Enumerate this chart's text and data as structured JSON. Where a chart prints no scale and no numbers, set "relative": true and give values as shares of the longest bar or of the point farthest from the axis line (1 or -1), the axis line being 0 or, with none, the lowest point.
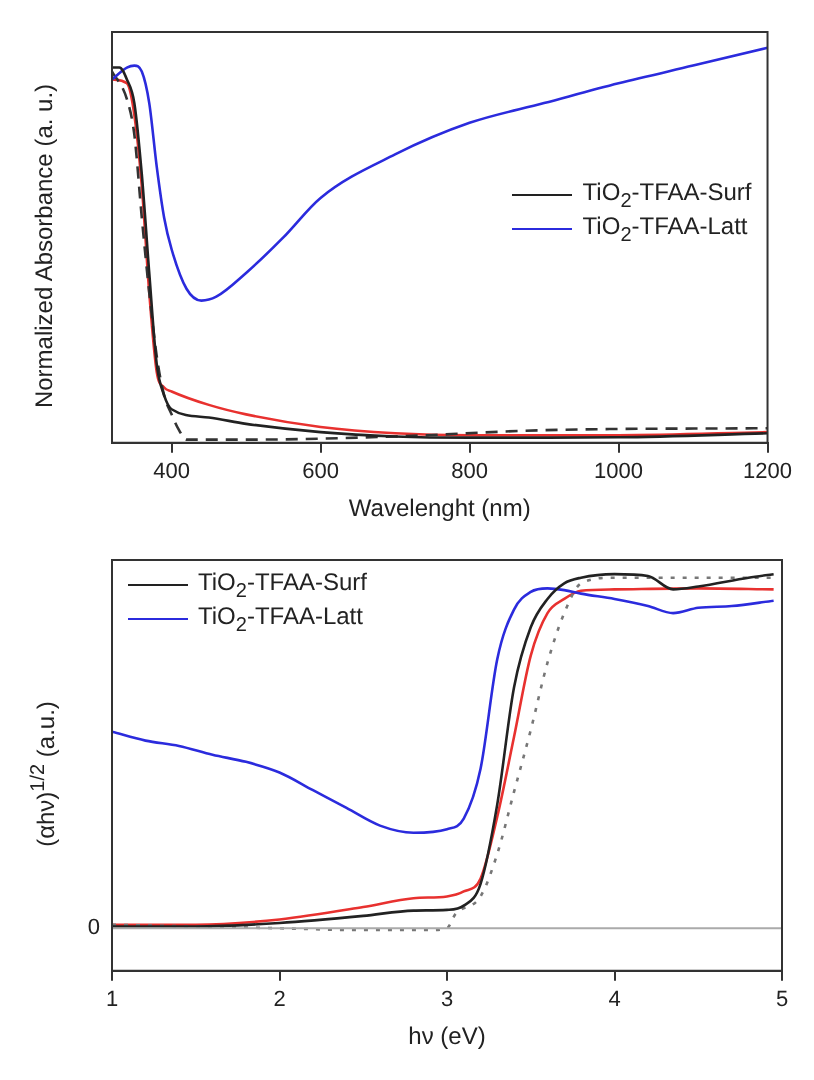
{
  "chart_data": [
    {
      "type": "line",
      "xlabel": "Wavelenght (nm)",
      "ylabel": "Normalized Absorbance (a. u.)",
      "relative": true,
      "xlim": [
        320,
        1200
      ],
      "xticks": [
        400,
        600,
        800,
        1000,
        1200
      ],
      "legend": "right",
      "grid": false,
      "marker": "none",
      "series": [
        {
          "name": "TiO$_{2}$-TFAA-Surf",
          "color": "#222222",
          "line_style": "solid",
          "x": [
            320,
            330,
            340,
            350,
            360,
            370,
            380,
            390,
            400,
            450,
            500,
            600,
            700,
            800,
            1000,
            1200
          ],
          "values": [
            0.95,
            0.95,
            0.92,
            0.86,
            0.68,
            0.43,
            0.2,
            0.12,
            0.085,
            0.064,
            0.048,
            0.027,
            0.016,
            0.013,
            0.014,
            0.024
          ]
        },
        {
          "name": "TiO$_{2}$-TFAA-Latt",
          "color": "#2b2bdd",
          "line_style": "solid",
          "x": [
            320,
            340,
            350,
            360,
            370,
            380,
            390,
            400,
            420,
            440,
            460,
            500,
            550,
            600,
            700,
            800,
            900,
            1000,
            1100,
            1200
          ],
          "values": [
            0.92,
            0.95,
            0.955,
            0.94,
            0.86,
            0.7,
            0.57,
            0.49,
            0.39,
            0.36,
            0.37,
            0.43,
            0.52,
            0.62,
            0.73,
            0.81,
            0.86,
            0.91,
            0.955,
            1
          ]
        },
        {
          "color": "#333333",
          "line_style": "dashed",
          "x": [
            320,
            340,
            350,
            360,
            370,
            380,
            390,
            400,
            410,
            420,
            500,
            700,
            900,
            1200
          ],
          "values": [
            0.94,
            0.87,
            0.78,
            0.57,
            0.38,
            0.22,
            0.12,
            0.072,
            0.032,
            0.008,
            0.008,
            0.016,
            0.032,
            0.037
          ]
        },
        {
          "color": "#e8312f",
          "line_style": "solid",
          "x": [
            320,
            340,
            350,
            360,
            370,
            380,
            390,
            400,
            450,
            500,
            600,
            700,
            800,
            1000,
            1200
          ],
          "values": [
            0.92,
            0.91,
            0.83,
            0.65,
            0.38,
            0.18,
            0.14,
            0.13,
            0.096,
            0.072,
            0.04,
            0.024,
            0.019,
            0.019,
            0.027
          ]
        }
      ]
    },
    {
      "type": "line",
      "xlabel": "hν (eV)",
      "ylabel": "(αhν)$^{1/2}$ (a.u.)",
      "relative": true,
      "xlim": [
        1,
        5
      ],
      "xticks": [
        1,
        2,
        3,
        4,
        5
      ],
      "legend": "top left",
      "grid": false,
      "marker": "none",
      "ref_lines": [
        {
          "axis": "y",
          "value": 0,
          "label": "0",
          "color": "#aaaaaa"
        }
      ],
      "series": [
        {
          "name": "TiO$_{2}$-TFAA-Surf",
          "color": "#222222",
          "line_style": "solid",
          "x": [
            1,
            1.5,
            2,
            2.5,
            2.8,
            3,
            3.1,
            3.2,
            3.3,
            3.4,
            3.5,
            3.6,
            3.7,
            3.8,
            4,
            4.2,
            4.35,
            4.5,
            4.8,
            4.95
          ],
          "values": [
            0.005,
            0.005,
            0.015,
            0.035,
            0.05,
            0.052,
            0.064,
            0.125,
            0.35,
            0.68,
            0.85,
            0.93,
            0.974,
            0.99,
            1,
            0.995,
            0.957,
            0.965,
            0.99,
            1
          ]
        },
        {
          "name": "TiO$_{2}$-TFAA-Latt",
          "color": "#2b2bdd",
          "line_style": "solid",
          "x": [
            1,
            1.2,
            1.4,
            1.6,
            1.8,
            2,
            2.2,
            2.4,
            2.6,
            2.8,
            3,
            3.1,
            3.2,
            3.3,
            3.4,
            3.5,
            3.6,
            3.7,
            3.8,
            4,
            4.2,
            4.35,
            4.5,
            4.7,
            4.95
          ],
          "values": [
            0.555,
            0.53,
            0.515,
            0.49,
            0.47,
            0.44,
            0.39,
            0.34,
            0.29,
            0.27,
            0.28,
            0.31,
            0.45,
            0.76,
            0.9,
            0.95,
            0.96,
            0.955,
            0.945,
            0.93,
            0.91,
            0.89,
            0.905,
            0.91,
            0.925
          ]
        },
        {
          "color": "#777777",
          "line_style": "dotted",
          "x": [
            1,
            2,
            2.5,
            2.9,
            3,
            3.05,
            3.2,
            3.3,
            3.4,
            3.5,
            3.6,
            3.7,
            3.8,
            4,
            4.5,
            4.95
          ],
          "values": [
            0.01,
            0,
            -0.005,
            -0.005,
            0,
            0.04,
            0.09,
            0.21,
            0.385,
            0.56,
            0.75,
            0.89,
            0.974,
            0.99,
            0.99,
            0.99
          ]
        },
        {
          "color": "#e8312f",
          "line_style": "solid",
          "x": [
            1,
            1.5,
            2,
            2.5,
            2.8,
            3,
            3.1,
            3.2,
            3.3,
            3.4,
            3.5,
            3.6,
            3.7,
            3.8,
            4,
            4.5,
            4.95
          ],
          "values": [
            0.01,
            0.01,
            0.025,
            0.06,
            0.085,
            0.09,
            0.104,
            0.14,
            0.315,
            0.54,
            0.77,
            0.89,
            0.93,
            0.953,
            0.957,
            0.96,
            0.957
          ]
        }
      ]
    }
  ]
}
